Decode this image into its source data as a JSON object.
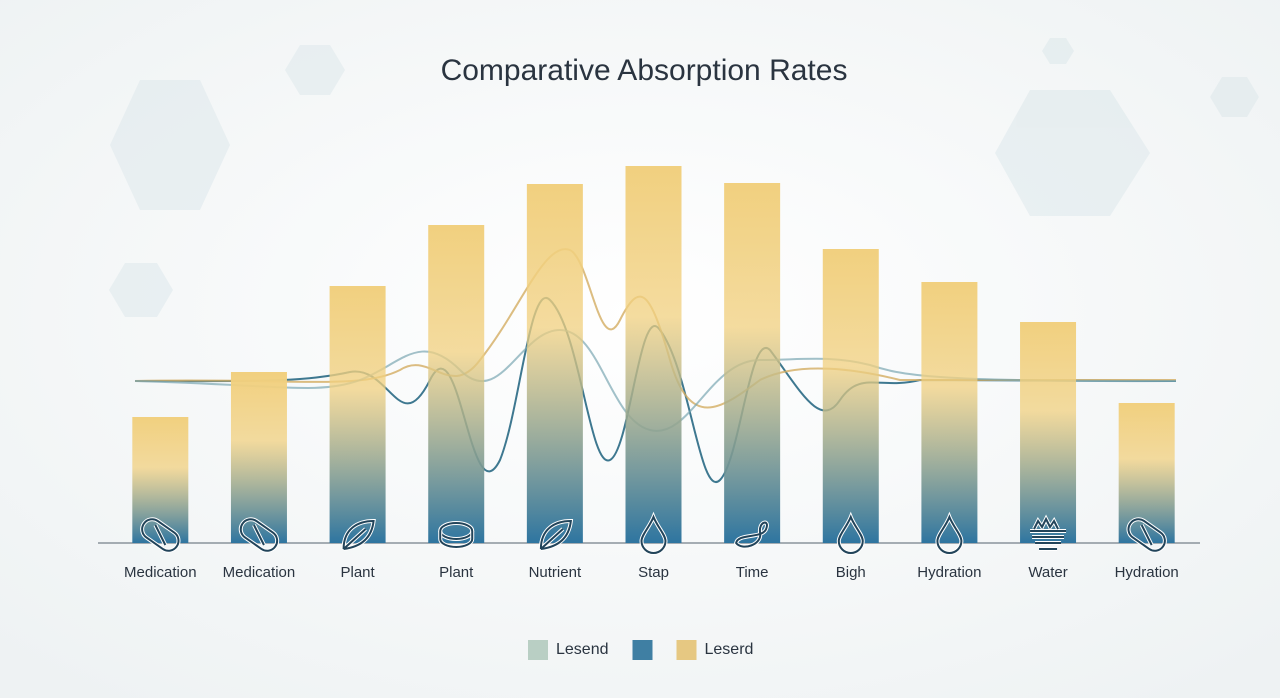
{
  "chart_data": {
    "type": "bar",
    "title": "Comparative Absorption Rates",
    "categories": [
      "Medication",
      "Medication",
      "Plant",
      "Plant",
      "Nutrient",
      "Stap",
      "Time",
      "Bigh",
      "Hydration",
      "Water",
      "Hydration"
    ],
    "values": [
      126,
      171,
      257,
      318,
      359,
      377,
      360,
      294,
      261,
      221,
      140
    ],
    "ylim": [
      0,
      400
    ],
    "gradient": [
      "#f1d07f",
      "#2e75a0"
    ],
    "legend": [
      {
        "name": "Lesend",
        "color": "#b9cfc4"
      },
      {
        "color": "#3f7fa3"
      },
      {
        "name": "Leserd",
        "color": "#e6c882"
      }
    ]
  }
}
